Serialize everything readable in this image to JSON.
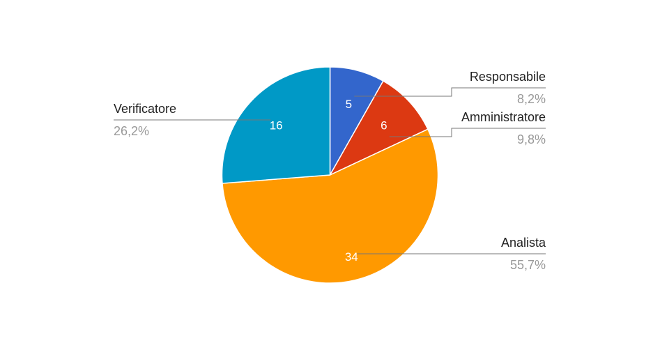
{
  "chart_data": {
    "type": "pie",
    "title": "",
    "start_angle_deg": 0,
    "direction": "clockwise",
    "slices": [
      {
        "label": "Responsabile",
        "value": 5,
        "percent_label": "8,2%",
        "color": "#3366cc"
      },
      {
        "label": "Amministratore",
        "value": 6,
        "percent_label": "9,8%",
        "color": "#dc3912"
      },
      {
        "label": "Analista",
        "value": 34,
        "percent_label": "55,7%",
        "color": "#ff9900"
      },
      {
        "label": "Verificatore",
        "value": 16,
        "percent_label": "26,2%",
        "color": "#0099c6"
      }
    ],
    "legend": "none",
    "labels": "outside-with-leader-lines"
  }
}
